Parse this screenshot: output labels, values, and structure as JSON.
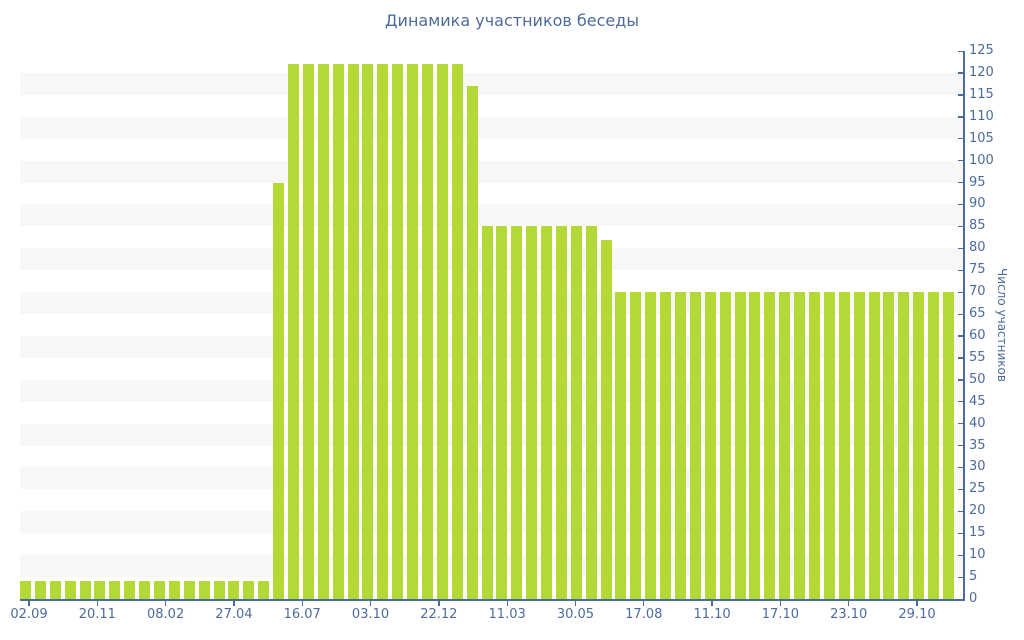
{
  "chart_data": {
    "type": "bar",
    "title": "Динамика участников беседы",
    "xlabel": "",
    "ylabel": "Число участников",
    "ylim": [
      0,
      125
    ],
    "y_axis_position": "right",
    "grid": "horizontal striped bands every 5 units",
    "legend": false,
    "n_bars": 63,
    "y_tick_labels": [
      0,
      5,
      10,
      15,
      20,
      25,
      30,
      35,
      40,
      45,
      50,
      55,
      60,
      65,
      70,
      75,
      80,
      85,
      90,
      95,
      100,
      105,
      110,
      115,
      120,
      125
    ],
    "x_tick_labels": [
      "02.09",
      "20.11",
      "08.02",
      "27.04",
      "16.07",
      "03.10",
      "22.12",
      "11.03",
      "30.05",
      "17.08",
      "11.10",
      "17.10",
      "23.10",
      "29.10"
    ],
    "values": [
      4,
      4,
      4,
      4,
      4,
      4,
      4,
      4,
      4,
      4,
      4,
      4,
      4,
      4,
      4,
      4,
      4,
      95,
      122,
      122,
      122,
      122,
      122,
      122,
      122,
      122,
      122,
      122,
      122,
      122,
      117,
      85,
      85,
      85,
      85,
      85,
      85,
      85,
      85,
      82,
      70,
      70,
      70,
      70,
      70,
      70,
      70,
      70,
      70,
      70,
      70,
      70,
      70,
      70,
      70,
      70,
      70,
      70,
      70,
      70,
      70,
      70,
      70
    ],
    "colors": {
      "bar": "#b2d936",
      "band": "#f7f7f7",
      "axis": "#4a6b9e",
      "label": "#4c6b9c",
      "title": "#4c6b9c",
      "background": "#ffffff"
    }
  }
}
